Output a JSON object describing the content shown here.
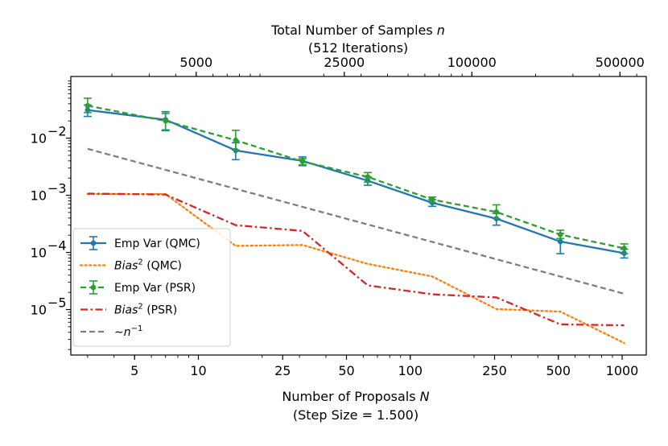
{
  "chart_data": {
    "type": "line",
    "scale": {
      "x": "log",
      "y": "log"
    },
    "xlim": [
      2.5,
      1300
    ],
    "ylim": [
      1.6e-06,
      0.12
    ],
    "bottom_axis": {
      "label_line1": "Number of Proposals N",
      "label_line2": "(Step Size = 1.500)",
      "ticks": [
        5,
        10,
        25,
        50,
        100,
        250,
        500,
        1000
      ],
      "tick_labels": [
        "5",
        "10",
        "25",
        "50",
        "100",
        "250",
        "500",
        "1000"
      ]
    },
    "top_axis": {
      "label_line1": "Total Number of Samples n",
      "label_line2": "(512 Iterations)",
      "samples_per_proposal": 512,
      "ticks": [
        5000,
        25000,
        100000,
        500000
      ],
      "tick_labels": [
        "5000",
        "25000",
        "100000",
        "500000"
      ]
    },
    "y_axis": {
      "ticks": [
        0.01,
        0.001,
        0.0001,
        1e-05
      ],
      "tick_mantissa": "10",
      "tick_exponents": [
        "−2",
        "−3",
        "−4",
        "−5"
      ]
    },
    "series": [
      {
        "name": "Emp Var (QMC)",
        "style": "solid",
        "color": "#1f77b4",
        "markers": true,
        "x": [
          3,
          7,
          15,
          31,
          63,
          127,
          255,
          511,
          1023
        ],
        "y": [
          0.031,
          0.021,
          0.0061,
          0.004,
          0.0018,
          0.00074,
          0.00039,
          0.000155,
          9.7e-05
        ],
        "err_low": [
          0.024,
          0.0135,
          0.0042,
          0.0033,
          0.0015,
          0.00064,
          0.0003,
          9.5e-05,
          8e-05
        ],
        "err_high": [
          0.038,
          0.029,
          0.0083,
          0.0047,
          0.0021,
          0.00084,
          0.00048,
          0.000215,
          0.000114
        ]
      },
      {
        "name": "Bias^2 (QMC)",
        "style": "dotted",
        "color": "#ff7f0e",
        "markers": false,
        "x": [
          3,
          7,
          15,
          31,
          63,
          127,
          255,
          511,
          1023
        ],
        "y": [
          0.00105,
          0.00105,
          0.00013,
          0.000135,
          6.3e-05,
          3.8e-05,
          1.02e-05,
          9.2e-06,
          2.6e-06
        ]
      },
      {
        "name": "Emp Var (PSR)",
        "style": "dashed",
        "color": "#2ca02c",
        "markers": true,
        "x": [
          3,
          7,
          15,
          31,
          63,
          127,
          255,
          511,
          1023
        ],
        "y": [
          0.037,
          0.02,
          0.0092,
          0.0039,
          0.0021,
          0.00084,
          0.00051,
          0.000205,
          0.000118
        ],
        "err_low": [
          0.028,
          0.014,
          0.0062,
          0.0034,
          0.0017,
          0.00075,
          0.00039,
          0.000175,
          9.5e-05
        ],
        "err_high": [
          0.05,
          0.027,
          0.0137,
          0.0044,
          0.0025,
          0.00093,
          0.00068,
          0.000245,
          0.000141
        ]
      },
      {
        "name": "Bias^2 (PSR)",
        "style": "dashdot",
        "color": "#d62728",
        "markers": false,
        "x": [
          3,
          7,
          15,
          31,
          63,
          127,
          255,
          511,
          1023
        ],
        "y": [
          0.00107,
          0.00103,
          0.0003,
          0.000238,
          2.65e-05,
          1.85e-05,
          1.63e-05,
          5.5e-06,
          5.3e-06
        ]
      },
      {
        "name": "~ n^-1",
        "style": "dashed",
        "color": "#7f7f7f",
        "markers": false,
        "x": [
          3,
          1023
        ],
        "y": [
          0.0065,
          1.89e-05
        ]
      }
    ],
    "legend": {
      "placement": "lower-left",
      "entries": [
        {
          "label": "Emp Var (QMC)",
          "italic": "",
          "sup": "",
          "suffix": ""
        },
        {
          "label": "",
          "italic": "Bias",
          "sup": "2",
          "suffix": " (QMC)"
        },
        {
          "label": "Emp Var (PSR)",
          "italic": "",
          "sup": "",
          "suffix": ""
        },
        {
          "label": "",
          "italic": "Bias",
          "sup": "2",
          "suffix": " (PSR)"
        },
        {
          "label": "∼",
          "italic": "n",
          "sup": "−1",
          "suffix": ""
        }
      ]
    }
  }
}
